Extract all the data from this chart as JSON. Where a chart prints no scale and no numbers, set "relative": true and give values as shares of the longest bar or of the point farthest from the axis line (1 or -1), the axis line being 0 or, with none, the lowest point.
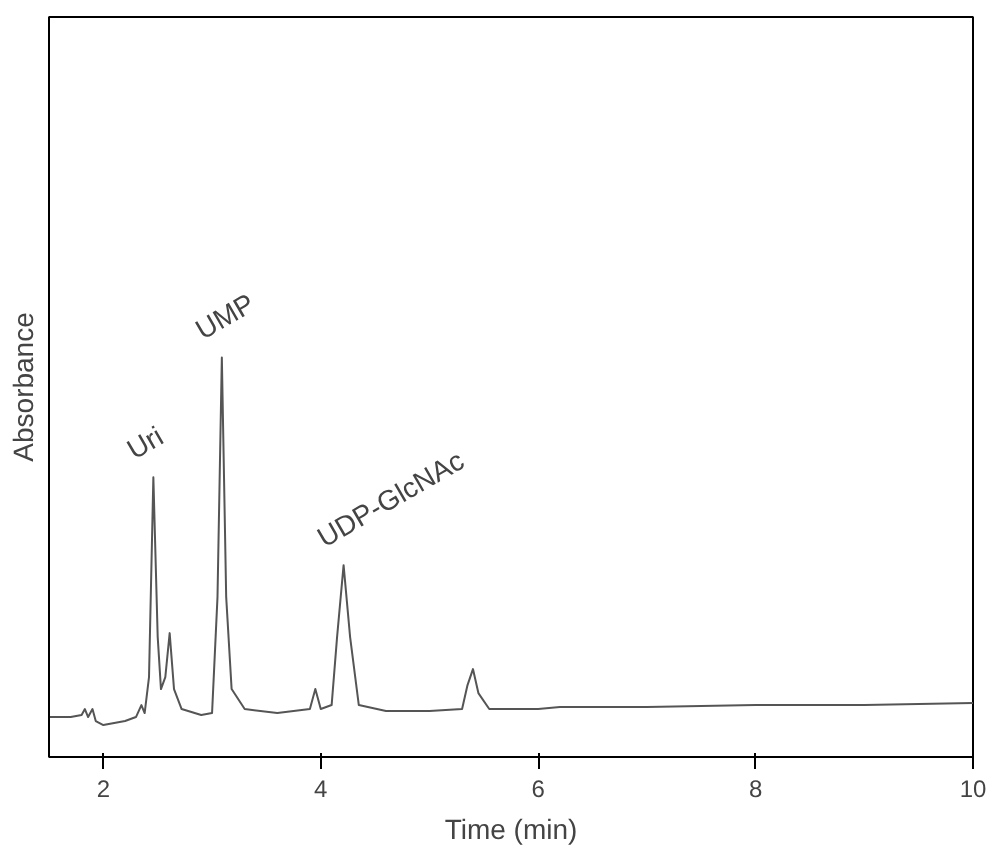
{
  "chart_data": {
    "type": "line",
    "relative": true,
    "xlabel": "Time (min)",
    "ylabel": "Absorbance",
    "tick_labels": "x",
    "grid": false,
    "xlim": [
      1.5,
      10
    ],
    "xticks": [
      2,
      4,
      6,
      8,
      10
    ],
    "x": [
      1.5,
      1.7,
      1.8,
      1.83,
      1.86,
      1.9,
      1.93,
      2.0,
      2.2,
      2.3,
      2.35,
      2.38,
      2.42,
      2.46,
      2.5,
      2.53,
      2.57,
      2.61,
      2.65,
      2.72,
      2.9,
      3.0,
      3.05,
      3.09,
      3.13,
      3.18,
      3.3,
      3.6,
      3.9,
      3.95,
      4.0,
      4.1,
      4.15,
      4.21,
      4.27,
      4.35,
      4.6,
      5.0,
      5.3,
      5.35,
      5.4,
      5.45,
      5.55,
      6.0,
      6.2,
      7,
      8,
      9,
      10
    ],
    "series": [
      {
        "color": "#555555",
        "values": [
          0.1,
          0.1,
          0.105,
          0.12,
          0.1,
          0.12,
          0.09,
          0.08,
          0.09,
          0.1,
          0.13,
          0.11,
          0.2,
          0.7,
          0.3,
          0.17,
          0.2,
          0.31,
          0.17,
          0.12,
          0.105,
          0.11,
          0.4,
          1.0,
          0.4,
          0.17,
          0.12,
          0.11,
          0.12,
          0.17,
          0.12,
          0.13,
          0.3,
          0.48,
          0.3,
          0.13,
          0.115,
          0.115,
          0.12,
          0.18,
          0.22,
          0.16,
          0.12,
          0.12,
          0.125,
          0.125,
          0.13,
          0.13,
          0.135
        ]
      }
    ],
    "annotations": [
      {
        "text": "Uri",
        "x": 2.46,
        "y": 0.7
      },
      {
        "text": "UMP",
        "x": 3.09,
        "y": 1.0
      },
      {
        "text": "UDP-GlcNAc",
        "x": 4.21,
        "y": 0.48
      }
    ]
  }
}
